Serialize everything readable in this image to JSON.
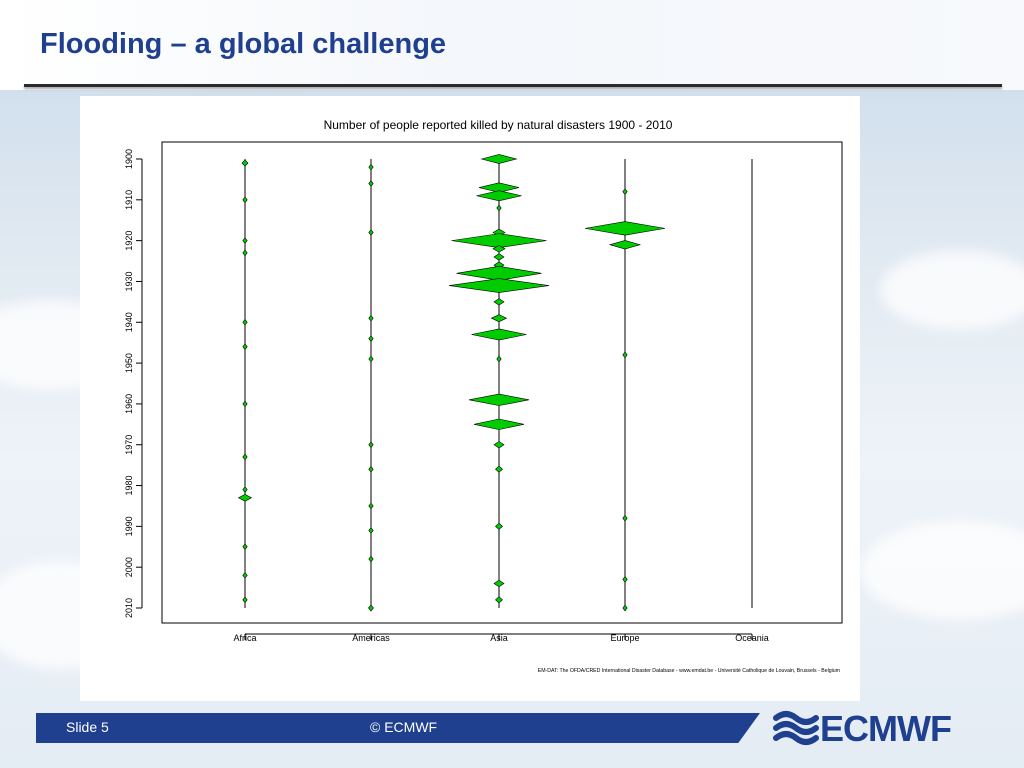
{
  "slide": {
    "title": "Flooding – a global challenge",
    "slide_number": "Slide 5",
    "copyright": "© ECMWF",
    "logo_text": "ECMWF"
  },
  "colors": {
    "title": "#1f3f8f",
    "footer": "#1f3f8f",
    "marker_fill": "#00cc00",
    "marker_stroke": "#000000"
  },
  "chart_data": {
    "type": "scatter",
    "title": "Number of people reported killed by natural disasters 1900 - 2010",
    "source": "EM-DAT: The OFDA/CRED International Disaster Database - www.emdat.be - Université Catholique de Louvain, Brussels - Belgium",
    "categories": [
      "Africa",
      "Americas",
      "Asia",
      "Europe",
      "Oceania"
    ],
    "y_ticks": [
      "1900",
      "1910",
      "1920",
      "1930",
      "1940",
      "1950",
      "1960",
      "1970",
      "1980",
      "1990",
      "2000",
      "2010"
    ],
    "ylim": [
      1900,
      2010
    ],
    "y_reversed": true,
    "marker": "diamond",
    "series": [
      {
        "values": [
          {
            "year": 1901,
            "size": 0.06
          },
          {
            "year": 1910,
            "size": 0.03
          },
          {
            "year": 1920,
            "size": 0.01
          },
          {
            "year": 1923,
            "size": 0.03
          },
          {
            "year": 1940,
            "size": 0.01
          },
          {
            "year": 1946,
            "size": 0.01
          },
          {
            "year": 1960,
            "size": 0.01
          },
          {
            "year": 1973,
            "size": 0.03
          },
          {
            "year": 1981,
            "size": 0.01
          },
          {
            "year": 1983,
            "size": 0.13
          },
          {
            "year": 1995,
            "size": 0.01
          },
          {
            "year": 2002,
            "size": 0.01
          },
          {
            "year": 2008,
            "size": 0.01
          }
        ]
      },
      {
        "values": [
          {
            "year": 1902,
            "size": 0.01
          },
          {
            "year": 1906,
            "size": 0.01
          },
          {
            "year": 1918,
            "size": 0.02
          },
          {
            "year": 1939,
            "size": 0.01
          },
          {
            "year": 1944,
            "size": 0.01
          },
          {
            "year": 1949,
            "size": 0.02
          },
          {
            "year": 1970,
            "size": 0.03
          },
          {
            "year": 1976,
            "size": 0.01
          },
          {
            "year": 1985,
            "size": 0.01
          },
          {
            "year": 1991,
            "size": 0.01
          },
          {
            "year": 1998,
            "size": 0.01
          },
          {
            "year": 2010,
            "size": 0.05
          }
        ]
      },
      {
        "values": [
          {
            "year": 1900,
            "size": 0.35
          },
          {
            "year": 1907,
            "size": 0.4
          },
          {
            "year": 1909,
            "size": 0.45
          },
          {
            "year": 1912,
            "size": 0.03
          },
          {
            "year": 1918,
            "size": 0.12
          },
          {
            "year": 1920,
            "size": 0.95
          },
          {
            "year": 1922,
            "size": 0.12
          },
          {
            "year": 1924,
            "size": 0.1
          },
          {
            "year": 1926,
            "size": 0.1
          },
          {
            "year": 1928,
            "size": 0.85
          },
          {
            "year": 1931,
            "size": 1.0
          },
          {
            "year": 1935,
            "size": 0.1
          },
          {
            "year": 1939,
            "size": 0.15
          },
          {
            "year": 1943,
            "size": 0.55
          },
          {
            "year": 1949,
            "size": 0.03
          },
          {
            "year": 1959,
            "size": 0.6
          },
          {
            "year": 1965,
            "size": 0.5
          },
          {
            "year": 1970,
            "size": 0.1
          },
          {
            "year": 1976,
            "size": 0.07
          },
          {
            "year": 1990,
            "size": 0.07
          },
          {
            "year": 2004,
            "size": 0.1
          },
          {
            "year": 2008,
            "size": 0.07
          }
        ]
      },
      {
        "values": [
          {
            "year": 1908,
            "size": 0.03
          },
          {
            "year": 1917,
            "size": 0.8
          },
          {
            "year": 1921,
            "size": 0.3
          },
          {
            "year": 1948,
            "size": 0.03
          },
          {
            "year": 1988,
            "size": 0.01
          },
          {
            "year": 2003,
            "size": 0.03
          },
          {
            "year": 2010,
            "size": 0.01
          }
        ]
      },
      {
        "values": []
      }
    ]
  }
}
